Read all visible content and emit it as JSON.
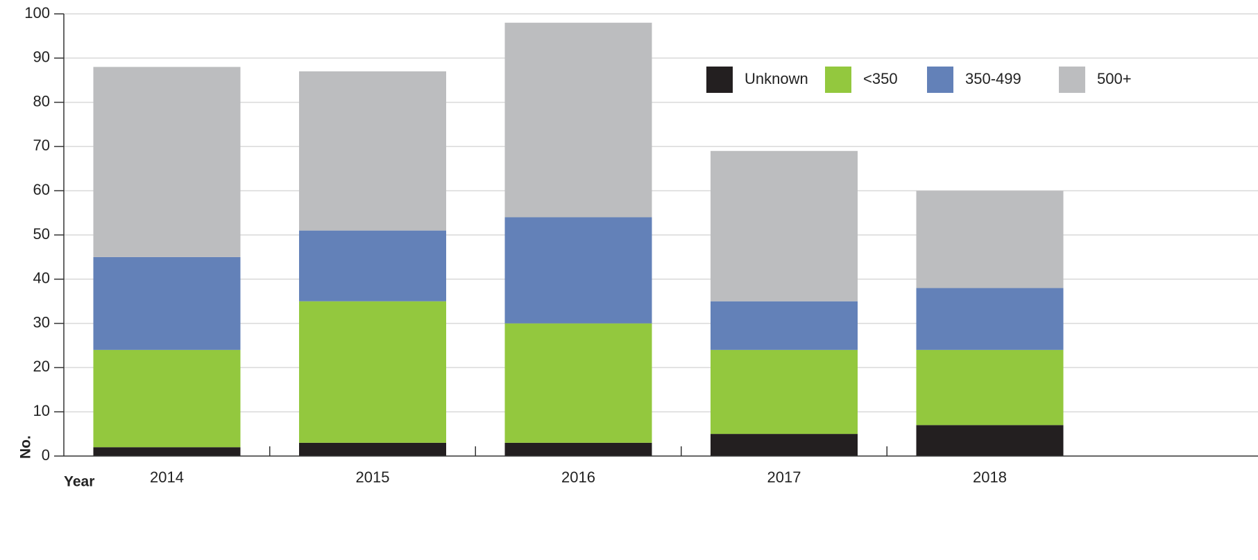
{
  "chart_data": {
    "type": "bar",
    "stacked": true,
    "title": "",
    "categories": [
      "2014",
      "2015",
      "2016",
      "2017",
      "2018"
    ],
    "series": [
      {
        "name": "Unknown",
        "color": "#231f20",
        "values": [
          2,
          3,
          3,
          5,
          7
        ]
      },
      {
        "name": "<350",
        "color": "#93c83e",
        "values": [
          22,
          32,
          27,
          19,
          17
        ]
      },
      {
        "name": "350-499",
        "color": "#6381b8",
        "values": [
          21,
          16,
          24,
          11,
          14
        ]
      },
      {
        "name": "500+",
        "color": "#bcbdbf",
        "values": [
          43,
          36,
          44,
          34,
          22
        ]
      }
    ],
    "totals": [
      88,
      87,
      98,
      69,
      60
    ],
    "xlabel": "Year",
    "ylabel": "No.",
    "ylim": [
      0,
      100
    ],
    "yticks": [
      0,
      10,
      20,
      30,
      40,
      50,
      60,
      70,
      80,
      90,
      100
    ],
    "grid": true,
    "legend_position": "top-right"
  }
}
